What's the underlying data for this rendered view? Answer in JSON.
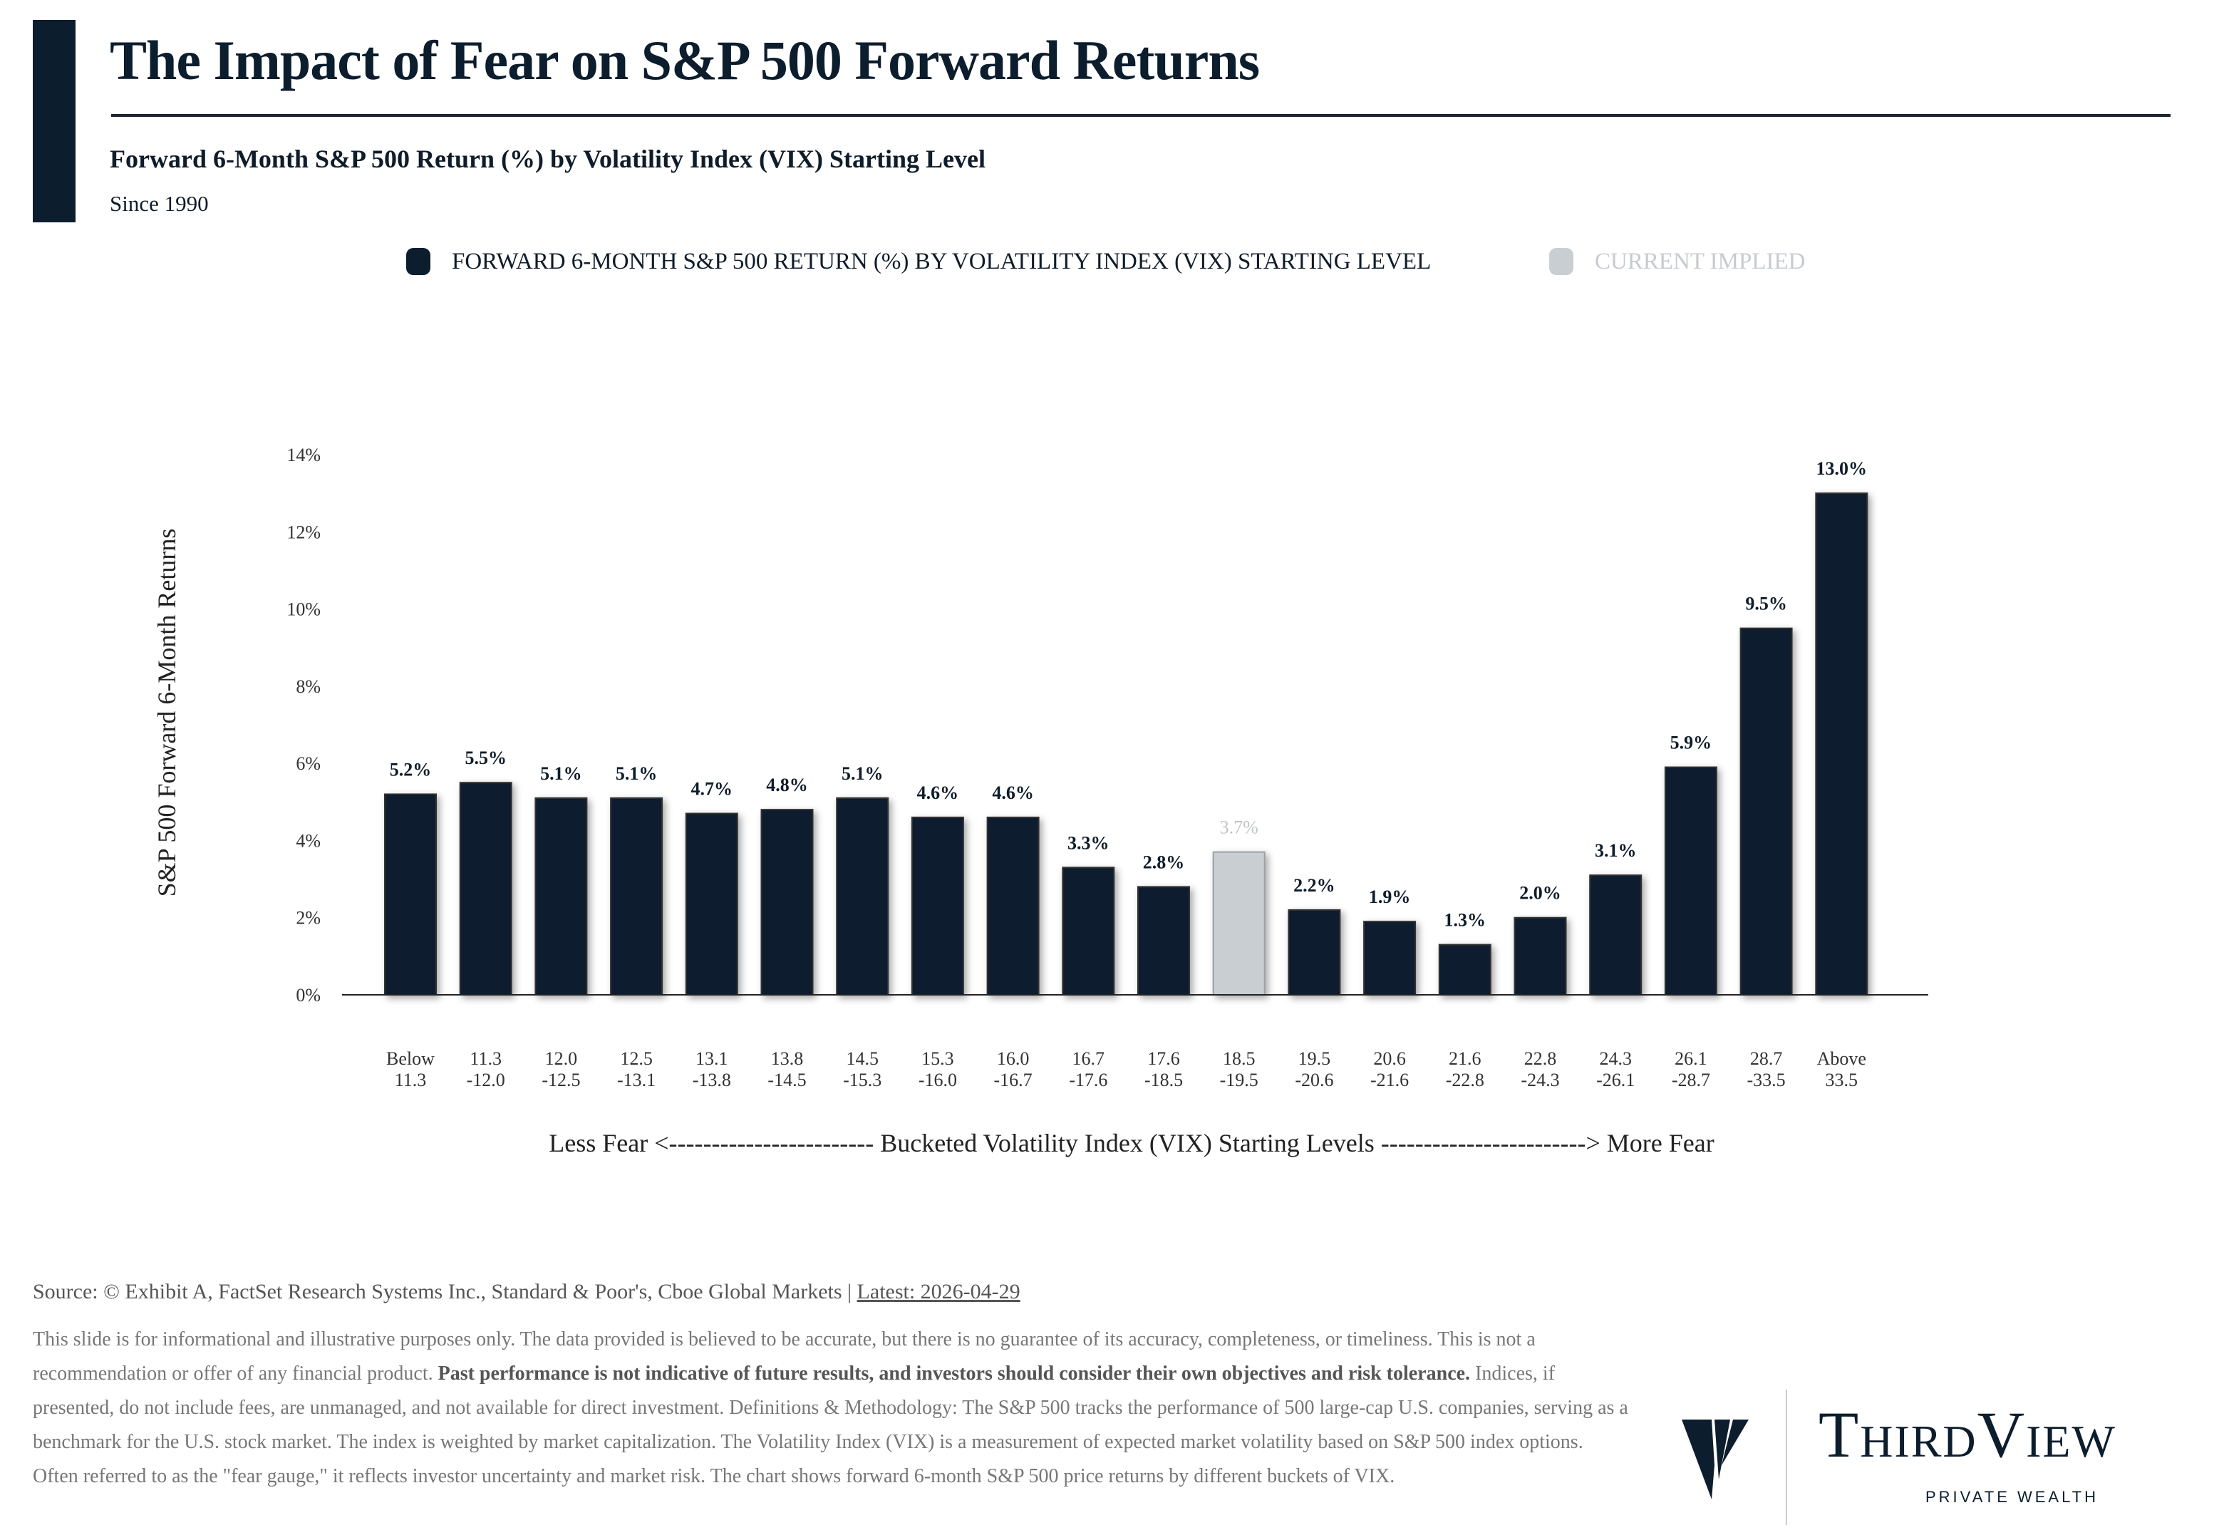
{
  "header": {
    "title": "The Impact of Fear on S&P 500 Forward Returns",
    "subtitle": "Forward 6-Month S&P 500 Return (%) by Volatility Index (VIX) Starting Level",
    "since": "Since 1990"
  },
  "legend": [
    {
      "label": "FORWARD 6-MONTH S&P 500 RETURN (%) BY VOLATILITY INDEX (VIX) STARTING LEVEL",
      "color": "#0c1d2d",
      "text_color": "#0f1c2a"
    },
    {
      "label": "CURRENT IMPLIED",
      "color": "#c9ced3",
      "text_color": "#c7cbd0"
    }
  ],
  "chart_data": {
    "type": "bar",
    "title": "Forward 6-Month S&P 500 Return (%) by Volatility Index (VIX) Starting Level",
    "ylabel": "S&P 500 Forward 6-Month Returns",
    "xlabel": "Less Fear <------------------------ Bucketed Volatility Index (VIX) Starting Levels ------------------------> More Fear",
    "ylim": [
      0,
      14
    ],
    "yticks": [
      0,
      2,
      4,
      6,
      8,
      10,
      12,
      14
    ],
    "ytick_labels": [
      "0%",
      "2%",
      "4%",
      "6%",
      "8%",
      "10%",
      "12%",
      "14%"
    ],
    "grid": false,
    "categories": [
      [
        "Below",
        "11.3"
      ],
      [
        "11.3",
        "-12.0"
      ],
      [
        "12.0",
        "-12.5"
      ],
      [
        "12.5",
        "-13.1"
      ],
      [
        "13.1",
        "-13.8"
      ],
      [
        "13.8",
        "-14.5"
      ],
      [
        "14.5",
        "-15.3"
      ],
      [
        "15.3",
        "-16.0"
      ],
      [
        "16.0",
        "-16.7"
      ],
      [
        "16.7",
        "-17.6"
      ],
      [
        "17.6",
        "-18.5"
      ],
      [
        "18.5",
        "-19.5"
      ],
      [
        "19.5",
        "-20.6"
      ],
      [
        "20.6",
        "-21.6"
      ],
      [
        "21.6",
        "-22.8"
      ],
      [
        "22.8",
        "-24.3"
      ],
      [
        "24.3",
        "-26.1"
      ],
      [
        "26.1",
        "-28.7"
      ],
      [
        "28.7",
        "-33.5"
      ],
      [
        "Above",
        "33.5"
      ]
    ],
    "values": [
      5.2,
      5.5,
      5.1,
      5.1,
      4.7,
      4.8,
      5.1,
      4.6,
      4.6,
      3.3,
      2.8,
      3.7,
      2.2,
      1.9,
      1.3,
      2.0,
      3.1,
      5.9,
      9.5,
      13.0
    ],
    "data_labels": [
      "5.2%",
      "5.5%",
      "5.1%",
      "5.1%",
      "4.7%",
      "4.8%",
      "5.1%",
      "4.6%",
      "4.6%",
      "3.3%",
      "2.8%",
      "3.7%",
      "2.2%",
      "1.9%",
      "1.3%",
      "2.0%",
      "3.1%",
      "5.9%",
      "9.5%",
      "13.0%"
    ],
    "highlight_index": 11,
    "colors": {
      "bar": "#0c1d2d",
      "highlight": "#c9ced3",
      "highlight_label": "#c0c4c8"
    }
  },
  "footer": {
    "source": "Source: © Exhibit A, FactSet Research Systems Inc., Standard & Poor's, Cboe Global Markets | ",
    "latest": "Latest: 2026-04-29",
    "disclaimer_1": "This slide is for informational and illustrative purposes only. The data provided is believed to be accurate, but there is no guarantee of its accuracy, completeness, or timeliness. This is not a recommendation or offer of any financial product. ",
    "disclaimer_bold": "Past performance is not indicative of future results, and investors should consider their own objectives and risk tolerance.",
    "disclaimer_2": " Indices, if presented, do not include fees, are unmanaged, and not available for direct investment. Definitions & Methodology: The S&P 500 tracks the performance of 500 large-cap U.S. companies, serving as a benchmark for the U.S. stock market. The index is weighted by market capitalization. The Volatility Index (VIX) is a measurement of expected market volatility based on S&P 500 index options. Often referred to as the \"fear gauge,\" it reflects investor uncertainty and market risk. The chart shows forward 6-month S&P 500 price returns by different buckets of VIX."
  },
  "logo": {
    "name": "ThirdView",
    "tagline": "PRIVATE WEALTH"
  }
}
